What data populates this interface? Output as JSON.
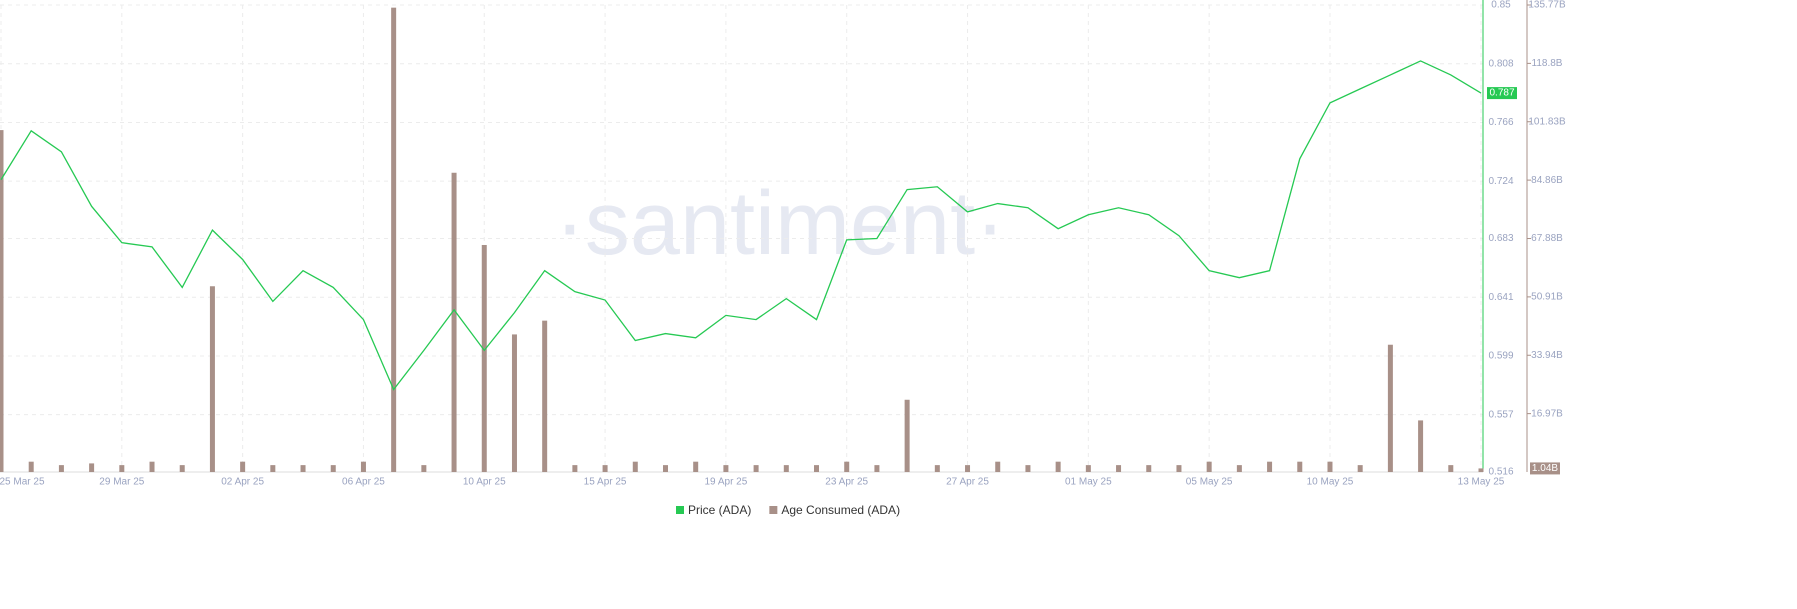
{
  "chart_data": {
    "type": "line-bar",
    "watermark": "·santiment·",
    "categories": [
      "25 Mar 25",
      null,
      null,
      null,
      "29 Mar 25",
      null,
      null,
      null,
      "02 Apr 25",
      null,
      null,
      null,
      "06 Apr 25",
      null,
      null,
      null,
      "10 Apr 25",
      null,
      null,
      null,
      "15 Apr 25",
      null,
      null,
      null,
      "19 Apr 25",
      null,
      null,
      null,
      "23 Apr 25",
      null,
      null,
      null,
      "27 Apr 25",
      null,
      null,
      null,
      "01 May 25",
      null,
      null,
      null,
      "05 May 25",
      null,
      null,
      null,
      "10 May 25",
      null,
      null,
      null,
      null,
      "13 May 25"
    ],
    "series": [
      {
        "name": "Price (ADA)",
        "color": "#26c953",
        "kind": "line",
        "axis": "y",
        "values": [
          0.725,
          0.76,
          0.745,
          0.706,
          0.68,
          0.677,
          0.648,
          0.689,
          0.668,
          0.638,
          0.66,
          0.648,
          0.625,
          0.575,
          0.603,
          0.632,
          0.603,
          0.63,
          0.66,
          0.645,
          0.639,
          0.61,
          0.615,
          0.612,
          0.628,
          0.625,
          0.64,
          0.625,
          0.682,
          0.683,
          0.718,
          0.72,
          0.702,
          0.708,
          0.705,
          0.69,
          0.7,
          0.705,
          0.7,
          0.685,
          0.66,
          0.655,
          0.66,
          0.74,
          0.78,
          0.79,
          0.8,
          0.81,
          0.8,
          0.787
        ]
      },
      {
        "name": "Age Consumed (ADA)",
        "color": "#a89088",
        "kind": "bar",
        "axis": "y2",
        "values": [
          99.4,
          3,
          2,
          2.5,
          2,
          3,
          2,
          54,
          3,
          2,
          2,
          2,
          3,
          135,
          2,
          87,
          66,
          40,
          44,
          2,
          2,
          3,
          2,
          3,
          2,
          2,
          2,
          2,
          3,
          2,
          21,
          2,
          2,
          3,
          2,
          3,
          2,
          2,
          2,
          2,
          3,
          2,
          3,
          3,
          3,
          2,
          37,
          15,
          2,
          1.04
        ]
      }
    ],
    "price_badge": "0.787",
    "age_badge": "1.04B",
    "ylim": [
      0.516,
      0.85
    ],
    "yticks": [
      0.516,
      0.557,
      0.599,
      0.641,
      0.683,
      0.724,
      0.766,
      0.808,
      0.85
    ],
    "y2lim": [
      0,
      135.77
    ],
    "y2ticks": [
      {
        "value": 16.97,
        "label": "16.97B"
      },
      {
        "value": 33.94,
        "label": "33.94B"
      },
      {
        "value": 50.91,
        "label": "50.91B"
      },
      {
        "value": 67.88,
        "label": "67.88B"
      },
      {
        "value": 84.86,
        "label": "84.86B"
      },
      {
        "value": 101.83,
        "label": "101.83B"
      },
      {
        "value": 118.8,
        "label": "118.8B"
      },
      {
        "value": 135.77,
        "label": "135.77B"
      }
    ],
    "grid": true,
    "legend": "bottom"
  }
}
